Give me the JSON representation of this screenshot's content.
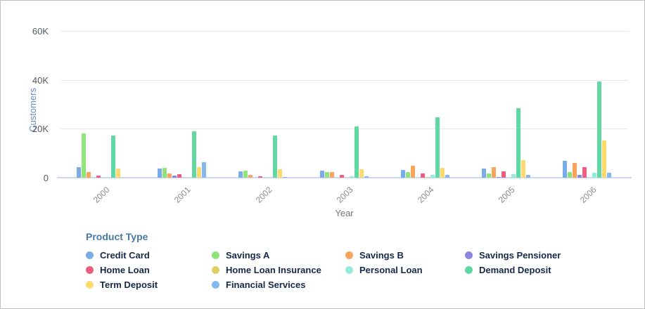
{
  "chart_data": {
    "type": "bar",
    "title": "",
    "xlabel": "Year",
    "ylabel": "Customers",
    "legend_title": "Product Type",
    "legend_position": "bottom",
    "grid": true,
    "ylim": [
      0,
      60000
    ],
    "yticks": [
      {
        "value": 0,
        "label": "0"
      },
      {
        "value": 20000,
        "label": "20K"
      },
      {
        "value": 40000,
        "label": "40K"
      },
      {
        "value": 60000,
        "label": "60K"
      }
    ],
    "categories": [
      "2000",
      "2001",
      "2002",
      "2003",
      "2004",
      "2005",
      "2006"
    ],
    "series": [
      {
        "name": "Credit Card",
        "color": "#79ADE5",
        "values": [
          4300,
          3600,
          2500,
          2900,
          3200,
          3700,
          6900
        ]
      },
      {
        "name": "Savings A",
        "color": "#90E578",
        "values": [
          18200,
          4000,
          2900,
          2300,
          2300,
          1600,
          2400
        ]
      },
      {
        "name": "Savings B",
        "color": "#F8A45C",
        "values": [
          2200,
          1600,
          1200,
          2300,
          4800,
          4300,
          6000
        ]
      },
      {
        "name": "Savings Pensioner",
        "color": "#8C86DC",
        "values": [
          0,
          900,
          0,
          0,
          0,
          400,
          1200
        ]
      },
      {
        "name": "Home Loan",
        "color": "#EE5C7F",
        "values": [
          800,
          1300,
          700,
          1200,
          1700,
          2600,
          4400
        ]
      },
      {
        "name": "Home Loan Insurance",
        "color": "#E2CF63",
        "values": [
          0,
          0,
          0,
          0,
          400,
          0,
          0
        ]
      },
      {
        "name": "Personal Loan",
        "color": "#94EBDC",
        "values": [
          0,
          0,
          0,
          600,
          1100,
          1400,
          1900
        ]
      },
      {
        "name": "Demand Deposit",
        "color": "#5FD8A1",
        "values": [
          17300,
          19000,
          17200,
          21000,
          24700,
          28300,
          39300
        ]
      },
      {
        "name": "Term Deposit",
        "color": "#FDDA6E",
        "values": [
          3800,
          4300,
          3400,
          3500,
          4100,
          7100,
          15300
        ]
      },
      {
        "name": "Financial Services",
        "color": "#84B9EE",
        "values": [
          0,
          6200,
          400,
          700,
          1200,
          1200,
          2000
        ]
      }
    ]
  }
}
